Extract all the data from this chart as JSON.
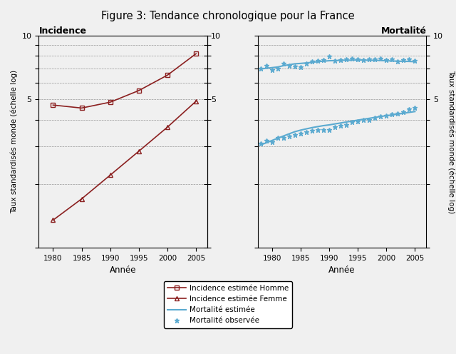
{
  "title": "Figure 3: Tendance chronologique pour la France",
  "ylabel": "Taux standardisés monde (échelle log)",
  "xlabel": "Année",
  "left_panel_title": "Incidence",
  "right_panel_title": "Mortalité",
  "ylim_log": [
    1,
    10
  ],
  "ytick_vals": [
    1,
    2,
    3,
    4,
    5,
    6,
    7,
    8,
    9,
    10
  ],
  "ytick_labels_shown": {
    "1": "",
    "2": "",
    "3": "",
    "4": "",
    "5": "5",
    "6": "",
    "7": "",
    "8": "",
    "9": "",
    "10": "10"
  },
  "xticks": [
    1980,
    1985,
    1990,
    1995,
    2000,
    2005
  ],
  "xlim": [
    1977.5,
    2007
  ],
  "inc_years": [
    1980,
    1985,
    1990,
    1995,
    2000,
    2005
  ],
  "inc_homme": [
    4.7,
    4.55,
    4.85,
    5.5,
    6.5,
    8.2
  ],
  "inc_femme": [
    1.35,
    1.7,
    2.2,
    2.85,
    3.7,
    4.9
  ],
  "mort_years": [
    1978,
    1979,
    1980,
    1981,
    1982,
    1983,
    1984,
    1985,
    1986,
    1987,
    1988,
    1989,
    1990,
    1991,
    1992,
    1993,
    1994,
    1995,
    1996,
    1997,
    1998,
    1999,
    2000,
    2001,
    2002,
    2003,
    2004,
    2005
  ],
  "mort_homme_obs": [
    7.0,
    7.2,
    6.85,
    7.0,
    7.35,
    7.2,
    7.15,
    7.1,
    7.4,
    7.55,
    7.6,
    7.65,
    7.95,
    7.6,
    7.65,
    7.7,
    7.8,
    7.75,
    7.65,
    7.7,
    7.75,
    7.8,
    7.65,
    7.7,
    7.55,
    7.65,
    7.7,
    7.6
  ],
  "mort_homme_est": [
    6.95,
    7.0,
    7.05,
    7.1,
    7.2,
    7.28,
    7.35,
    7.38,
    7.42,
    7.47,
    7.52,
    7.56,
    7.6,
    7.61,
    7.63,
    7.64,
    7.65,
    7.66,
    7.65,
    7.64,
    7.63,
    7.62,
    7.6,
    7.58,
    7.56,
    7.55,
    7.54,
    7.52
  ],
  "mort_femme_obs": [
    3.1,
    3.2,
    3.15,
    3.3,
    3.3,
    3.35,
    3.4,
    3.45,
    3.5,
    3.55,
    3.6,
    3.6,
    3.6,
    3.7,
    3.75,
    3.8,
    3.9,
    3.95,
    4.0,
    4.0,
    4.1,
    4.15,
    4.2,
    4.25,
    4.3,
    4.35,
    4.5,
    4.55
  ],
  "mort_femme_est": [
    3.05,
    3.12,
    3.2,
    3.28,
    3.36,
    3.44,
    3.52,
    3.58,
    3.63,
    3.68,
    3.72,
    3.76,
    3.79,
    3.83,
    3.87,
    3.91,
    3.95,
    3.99,
    4.03,
    4.07,
    4.11,
    4.15,
    4.19,
    4.22,
    4.26,
    4.3,
    4.34,
    4.38
  ],
  "color_incidence": "#8B2020",
  "color_mortality": "#5BAAD0",
  "background_color": "#F0F0F0",
  "legend_entries": [
    "Incidence estimée Homme",
    "Incidence estimée Femme",
    "Mortalité estimée",
    "Mortalité observée"
  ]
}
